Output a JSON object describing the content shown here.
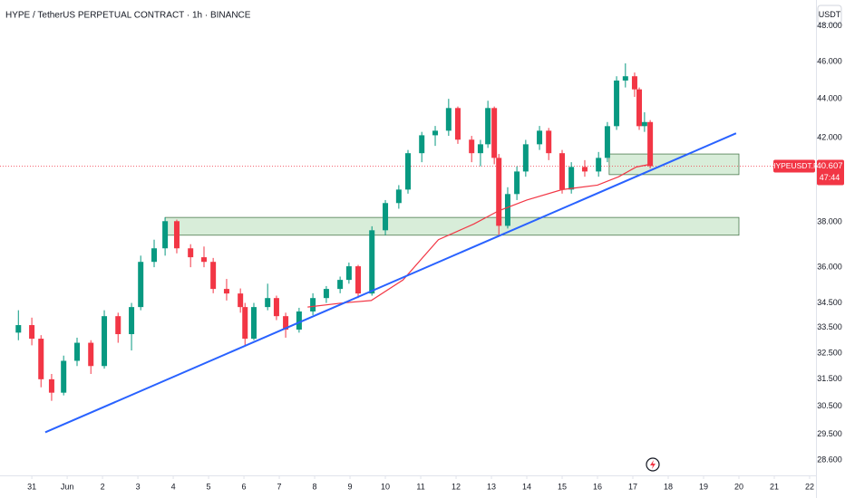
{
  "chart_data": {
    "type": "candlestick",
    "title": "HYPE / TetherUS PERPETUAL CONTRACT · 1h · BINANCE",
    "currency": "USDT",
    "symbol": "HYPEUSDT.P",
    "last_price": 40.607,
    "countdown": "47:44",
    "log_scale": true,
    "up_color": "#089981",
    "down_color": "#f23645",
    "xlim": [
      -0.9,
      22.18
    ],
    "xticks": [
      {
        "value": 0,
        "label": "31"
      },
      {
        "value": 1,
        "label": "Jun"
      },
      2,
      3,
      4,
      5,
      6,
      7,
      8,
      9,
      10,
      11,
      12,
      13,
      14,
      15,
      16,
      17,
      18,
      19,
      20,
      21,
      22
    ],
    "ylim": [
      28,
      49.5
    ],
    "yticks": [
      {
        "value": 48,
        "label": "48.000"
      },
      {
        "value": 46,
        "label": "46.000"
      },
      {
        "value": 44,
        "label": "44.000"
      },
      {
        "value": 42,
        "label": "42.000"
      },
      {
        "value": 38,
        "label": "38.000"
      },
      {
        "value": 36,
        "label": "36.000"
      },
      {
        "value": 34.5,
        "label": "34.500"
      },
      {
        "value": 33.5,
        "label": "33.500"
      },
      {
        "value": 32.5,
        "label": "32.500"
      },
      {
        "value": 31.5,
        "label": "31.500"
      },
      {
        "value": 30.5,
        "label": "30.500"
      },
      {
        "value": 29.5,
        "label": "29.500"
      },
      {
        "value": 28.6,
        "label": "28.600"
      }
    ],
    "candles": {
      "x": [
        -0.38,
        0.0,
        0.26,
        0.56,
        0.9,
        1.28,
        1.67,
        2.05,
        2.44,
        2.82,
        3.08,
        3.46,
        3.77,
        4.1,
        4.49,
        4.87,
        5.13,
        5.51,
        5.9,
        6.03,
        6.28,
        6.67,
        6.92,
        7.18,
        7.56,
        7.95,
        8.33,
        8.72,
        8.97,
        9.23,
        9.62,
        10.0,
        10.38,
        10.64,
        11.03,
        11.41,
        11.79,
        12.05,
        12.44,
        12.69,
        12.9,
        13.08,
        13.21,
        13.46,
        13.72,
        13.97,
        14.36,
        14.62,
        15.0,
        15.26,
        15.64,
        16.03,
        16.28,
        16.54,
        16.79,
        17.05,
        17.18,
        17.33,
        17.49
      ],
      "open": [
        33.3,
        33.6,
        33.06,
        31.5,
        31.0,
        32.2,
        32.9,
        32.0,
        33.96,
        33.24,
        34.33,
        36.23,
        36.82,
        38.03,
        36.82,
        36.43,
        36.23,
        35.08,
        34.89,
        34.33,
        33.06,
        34.33,
        34.7,
        33.96,
        33.42,
        34.15,
        34.7,
        35.08,
        35.46,
        36.04,
        34.89,
        37.62,
        38.86,
        39.49,
        41.24,
        42.13,
        42.36,
        43.52,
        41.91,
        41.24,
        41.68,
        43.52,
        41.01,
        37.82,
        39.28,
        40.35,
        41.68,
        42.36,
        41.24,
        39.49,
        40.57,
        40.35,
        41.01,
        42.59,
        44.97,
        45.2,
        44.5,
        42.59,
        42.8
      ],
      "high": [
        34.2,
        33.9,
        33.2,
        31.7,
        32.4,
        33.1,
        33.0,
        34.2,
        34.1,
        34.5,
        36.5,
        37.2,
        38.2,
        38.1,
        37.0,
        36.9,
        36.4,
        35.5,
        35.1,
        34.5,
        34.5,
        35.3,
        34.8,
        34.1,
        34.3,
        34.9,
        35.2,
        35.6,
        36.2,
        36.1,
        37.8,
        39.0,
        39.7,
        41.4,
        42.3,
        42.6,
        44.0,
        43.6,
        42.1,
        41.9,
        43.9,
        43.6,
        41.2,
        39.6,
        40.6,
        41.9,
        42.6,
        42.5,
        41.4,
        40.8,
        40.9,
        41.3,
        42.8,
        45.2,
        45.9,
        45.4,
        44.6,
        43.3,
        42.9
      ],
      "low": [
        33.0,
        32.8,
        31.2,
        30.7,
        30.9,
        32.0,
        31.7,
        31.9,
        32.9,
        32.6,
        34.2,
        36.0,
        36.5,
        36.6,
        36.0,
        36.0,
        34.9,
        34.6,
        34.1,
        32.8,
        33.0,
        34.2,
        33.8,
        33.1,
        33.3,
        34.0,
        34.5,
        34.9,
        35.3,
        34.7,
        34.8,
        37.4,
        38.6,
        39.3,
        40.8,
        41.6,
        42.1,
        41.7,
        40.8,
        40.6,
        41.5,
        40.7,
        37.4,
        37.7,
        39.0,
        40.1,
        41.4,
        40.9,
        39.3,
        39.3,
        40.1,
        40.1,
        40.8,
        42.4,
        44.6,
        44.1,
        42.4,
        42.3,
        40.5
      ],
      "close": [
        33.6,
        33.06,
        31.5,
        31.0,
        32.2,
        32.9,
        32.0,
        33.96,
        33.24,
        34.33,
        36.23,
        36.82,
        38.03,
        36.82,
        36.43,
        36.23,
        35.08,
        34.89,
        34.33,
        33.06,
        34.33,
        34.7,
        33.96,
        33.42,
        34.15,
        34.7,
        35.08,
        35.46,
        36.04,
        34.89,
        37.62,
        38.86,
        39.49,
        41.24,
        42.13,
        42.36,
        43.52,
        41.91,
        41.24,
        41.68,
        43.52,
        41.01,
        37.82,
        39.28,
        40.35,
        41.68,
        42.36,
        41.24,
        39.49,
        40.57,
        40.35,
        41.01,
        42.59,
        44.97,
        45.2,
        44.5,
        42.59,
        42.8,
        40.607
      ]
    },
    "moving_average": {
      "color": "#f23645",
      "x": [
        7.8,
        8.8,
        9.6,
        10.5,
        11.5,
        12.5,
        13.2,
        14.0,
        15.0,
        16.0,
        16.6,
        17.1,
        17.5
      ],
      "values": [
        34.33,
        34.5,
        34.6,
        35.46,
        37.2,
        37.9,
        38.5,
        39.0,
        39.49,
        39.7,
        40.1,
        40.57,
        40.7
      ]
    },
    "trendline": {
      "color": "#2962ff",
      "x": [
        0.38,
        19.92
      ],
      "y": [
        29.57,
        42.23
      ]
    },
    "zone_color": "#c8e6c9",
    "zones": [
      {
        "x": [
          3.77,
          20
        ],
        "y": [
          37.4,
          38.2
        ]
      },
      {
        "x": [
          16.33,
          20
        ],
        "y": [
          40.2,
          41.2
        ]
      }
    ]
  }
}
